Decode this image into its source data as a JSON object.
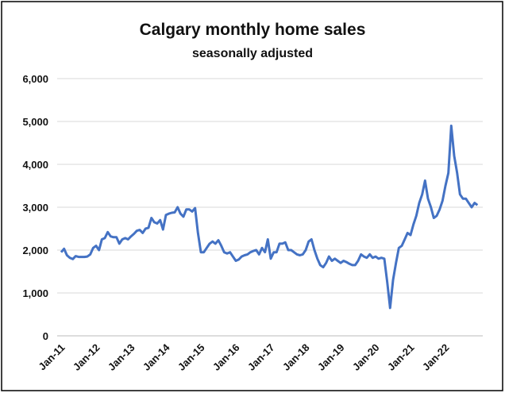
{
  "chart_data": {
    "type": "line",
    "title": "Calgary monthly home sales",
    "subtitle": "seasonally adjusted",
    "categories": [
      "Jan-11",
      null,
      null,
      null,
      null,
      null,
      null,
      null,
      null,
      null,
      null,
      null,
      "Jan-12",
      null,
      null,
      null,
      null,
      null,
      null,
      null,
      null,
      null,
      null,
      null,
      "Jan-13",
      null,
      null,
      null,
      null,
      null,
      null,
      null,
      null,
      null,
      null,
      null,
      "Jan-14",
      null,
      null,
      null,
      null,
      null,
      null,
      null,
      null,
      null,
      null,
      null,
      "Jan-15",
      null,
      null,
      null,
      null,
      null,
      null,
      null,
      null,
      null,
      null,
      null,
      "Jan-16",
      null,
      null,
      null,
      null,
      null,
      null,
      null,
      null,
      null,
      null,
      null,
      "Jan-17",
      null,
      null,
      null,
      null,
      null,
      null,
      null,
      null,
      null,
      null,
      null,
      "Jan-18",
      null,
      null,
      null,
      null,
      null,
      null,
      null,
      null,
      null,
      null,
      null,
      "Jan-19",
      null,
      null,
      null,
      null,
      null,
      null,
      null,
      null,
      null,
      null,
      null,
      "Jan-20",
      null,
      null,
      null,
      null,
      null,
      null,
      null,
      null,
      null,
      null,
      null,
      "Jan-21",
      null,
      null,
      null,
      null,
      null,
      null,
      null,
      null,
      null,
      null,
      null,
      "Jan-22",
      null,
      null,
      null,
      null,
      null,
      null,
      null,
      null,
      null,
      null,
      null
    ],
    "series": [
      {
        "color": "#4472c4",
        "values": [
          1950,
          2030,
          1880,
          1820,
          1790,
          1860,
          1840,
          1840,
          1840,
          1850,
          1900,
          2050,
          2100,
          2000,
          2250,
          2280,
          2420,
          2320,
          2300,
          2300,
          2150,
          2250,
          2280,
          2250,
          2320,
          2380,
          2450,
          2470,
          2400,
          2500,
          2520,
          2750,
          2650,
          2620,
          2700,
          2480,
          2820,
          2850,
          2870,
          2880,
          3000,
          2850,
          2780,
          2950,
          2950,
          2900,
          2980,
          2400,
          1950,
          1950,
          2050,
          2150,
          2200,
          2150,
          2230,
          2100,
          1950,
          1920,
          1950,
          1850,
          1750,
          1780,
          1850,
          1880,
          1900,
          1950,
          1980,
          2000,
          1900,
          2050,
          1950,
          2250,
          1800,
          1950,
          1950,
          2150,
          2150,
          2180,
          2000,
          2000,
          1950,
          1900,
          1880,
          1900,
          2000,
          2200,
          2250,
          2000,
          1800,
          1650,
          1600,
          1700,
          1850,
          1750,
          1800,
          1750,
          1700,
          1750,
          1720,
          1680,
          1650,
          1650,
          1750,
          1900,
          1850,
          1820,
          1900,
          1820,
          1850,
          1800,
          1820,
          1800,
          1250,
          650,
          1300,
          1700,
          2050,
          2100,
          2250,
          2400,
          2350,
          2600,
          2800,
          3100,
          3300,
          3620,
          3200,
          3000,
          2750,
          2800,
          2950,
          3150,
          3500,
          3800,
          4900,
          4200,
          3800,
          3300,
          3200,
          3200,
          3100,
          3000,
          3100,
          3050
        ]
      }
    ],
    "ylim": [
      0,
      6000
    ],
    "yticks": [
      0,
      {
        "value": 1000,
        "label": "1,000"
      },
      {
        "value": 2000,
        "label": "2,000"
      },
      {
        "value": 3000,
        "label": "3,000"
      },
      {
        "value": 4000,
        "label": "4,000"
      },
      {
        "value": 5000,
        "label": "5,000"
      },
      {
        "value": 6000,
        "label": "6,000"
      }
    ],
    "grid": true
  }
}
